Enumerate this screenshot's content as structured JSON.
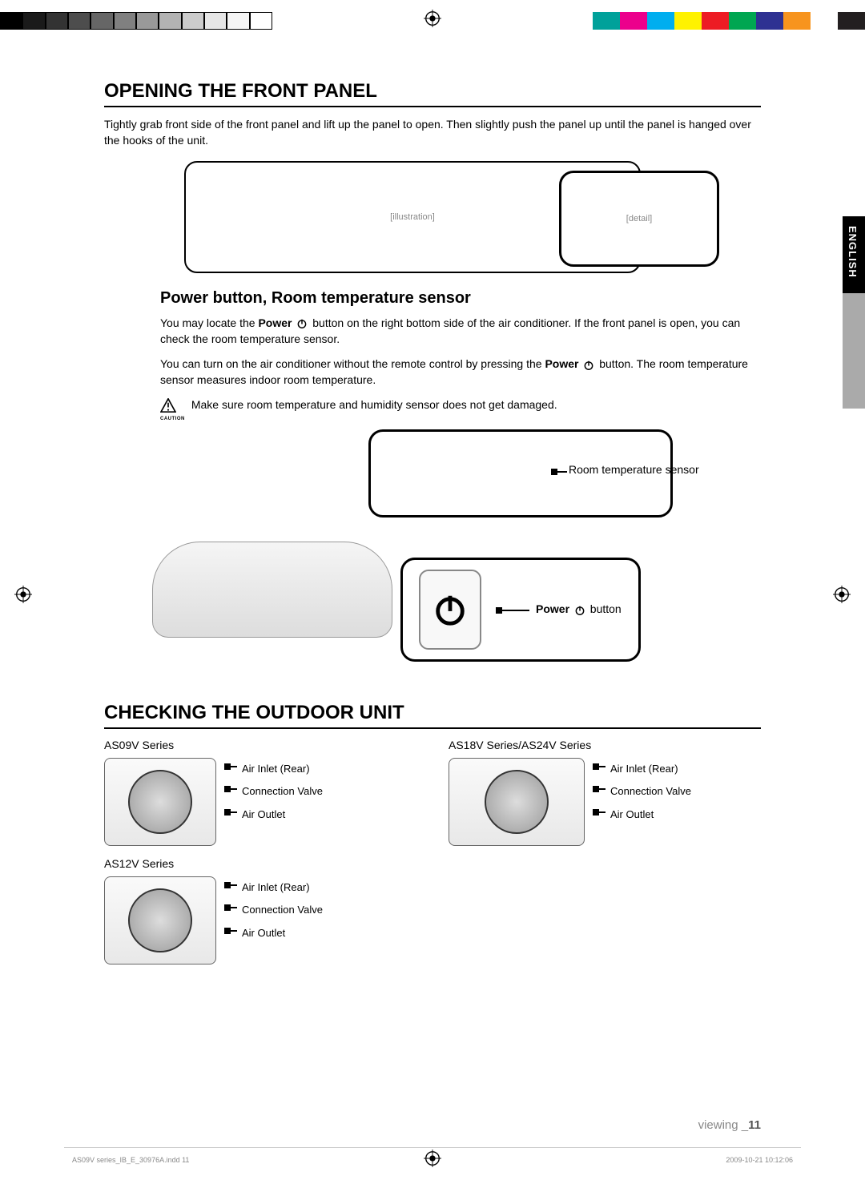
{
  "colorbar": {
    "greys": [
      "#000000",
      "#1a1a1a",
      "#333333",
      "#4d4d4d",
      "#666666",
      "#808080",
      "#999999",
      "#b3b3b3",
      "#cccccc",
      "#e6e6e6",
      "#f5f5f5",
      "#ffffff"
    ],
    "colors": [
      "#00a19a",
      "#ec008c",
      "#00aeef",
      "#fff200",
      "#ed1c24",
      "#00a651",
      "#2e3192",
      "#f7941e",
      "#ffffff",
      "#231f20"
    ]
  },
  "side_tab": "ENGLISH",
  "section1": {
    "title": "OPENING THE FRONT PANEL",
    "body": "Tightly grab front side of the front panel and lift up the panel to open. Then slightly push the panel up until the panel is hanged over the hooks of the unit."
  },
  "section2": {
    "title": "Power button, Room temperature sensor",
    "p1_a": "You may locate the ",
    "p1_b": "Power",
    "p1_c": " button on the right bottom side of the air conditioner. If the front panel is open, you can check the room temperature sensor.",
    "p2_a": "You can turn on the air conditioner without the remote control by pressing the ",
    "p2_b": "Power",
    "p2_c": " button. The room temperature sensor measures indoor room temperature.",
    "caution_label": "CAUTION",
    "caution_text": "Make sure room temperature and humidity sensor does not get damaged.",
    "sensor_label": "Room temperature sensor",
    "power_label_bold": "Power",
    "power_label_rest": " button"
  },
  "section3": {
    "title": "CHECKING THE OUTDOOR UNIT",
    "series": [
      {
        "name": "AS09V Series",
        "labels": [
          "Air Inlet (Rear)",
          "Connection Valve",
          "Air Outlet"
        ]
      },
      {
        "name": "AS12V Series",
        "labels": [
          "Air Inlet (Rear)",
          "Connection Valve",
          "Air Outlet"
        ]
      },
      {
        "name": "AS18V Series/AS24V Series",
        "labels": [
          "Air Inlet (Rear)",
          "Connection Valve",
          "Air Outlet"
        ]
      }
    ]
  },
  "footer": {
    "text": "viewing _",
    "page": "11"
  },
  "indd": "AS09V series_IB_E_30976A.indd   11",
  "timestamp": "2009-10-21   10:12:06"
}
